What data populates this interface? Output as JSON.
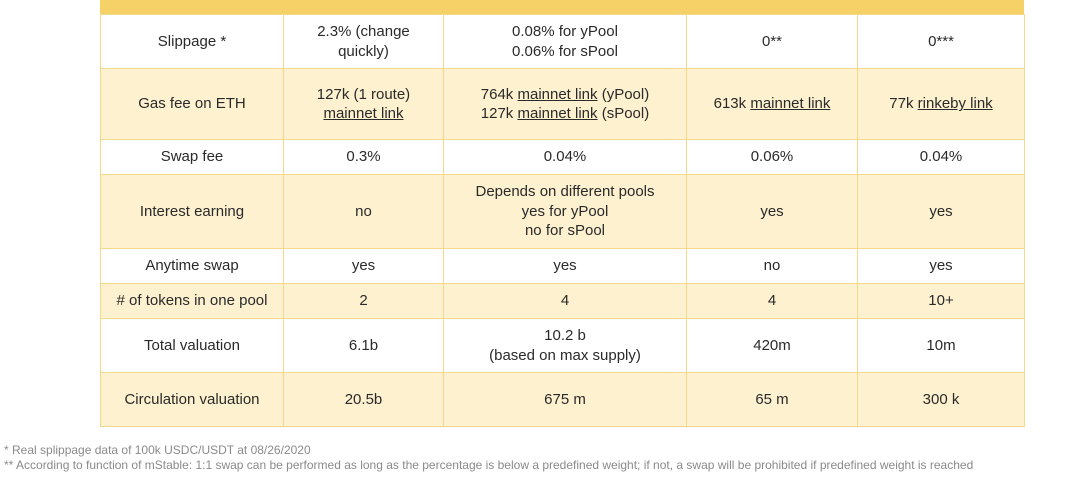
{
  "rows": [
    {
      "label": "Slippage *",
      "c1": [
        "2.3% (change",
        "quickly)"
      ],
      "c2": [
        "0.08% for yPool",
        "0.06% for sPool"
      ],
      "c3": "0**",
      "c4": "0***"
    },
    {
      "label": "Gas fee on ETH",
      "c1": {
        "line1": "127k (1 route)",
        "link1": "mainnet link"
      },
      "c2": {
        "l1_pre": "764k ",
        "l1_link": "mainnet link",
        "l1_post": " (yPool)",
        "l2_pre": "127k ",
        "l2_link": "mainnet link",
        "l2_post": " (sPool)"
      },
      "c3": {
        "pre": "613k ",
        "link": "mainnet link"
      },
      "c4": {
        "pre": "77k ",
        "link": "rinkeby link"
      }
    },
    {
      "label": "Swap fee",
      "c1": "0.3%",
      "c2": "0.04%",
      "c3": "0.06%",
      "c4": "0.04%"
    },
    {
      "label": "Interest earning",
      "c1": "no",
      "c2": [
        "Depends on different pools",
        "yes for yPool",
        "no for sPool"
      ],
      "c3": "yes",
      "c4": "yes"
    },
    {
      "label": "Anytime swap",
      "c1": "yes",
      "c2": "yes",
      "c3": "no",
      "c4": "yes"
    },
    {
      "label": "# of tokens in one pool",
      "c1": "2",
      "c2": "4",
      "c3": "4",
      "c4": "10+"
    },
    {
      "label": "Total valuation",
      "c1": "6.1b",
      "c2": [
        "10.2 b",
        "(based on max supply)"
      ],
      "c3": "420m",
      "c4": "10m"
    },
    {
      "label": "Circulation valuation",
      "c1": "20.5b",
      "c2": "675 m",
      "c3": "65 m",
      "c4": "300 k"
    }
  ],
  "footnotes": [
    "* Real splippage data of 100k USDC/USDT at 08/26/2020",
    "** According to function of mStable: 1:1 swap can be performed as long as the percentage is below a predefined weight; if not, a swap will be prohibited if predefined weight is reached"
  ],
  "colors": {
    "header_strip": "#f6d167",
    "row_white": "#ffffff",
    "row_cream": "#fdf1cf",
    "border": "#f5d98a",
    "footnote_text": "#8a8a8a"
  }
}
